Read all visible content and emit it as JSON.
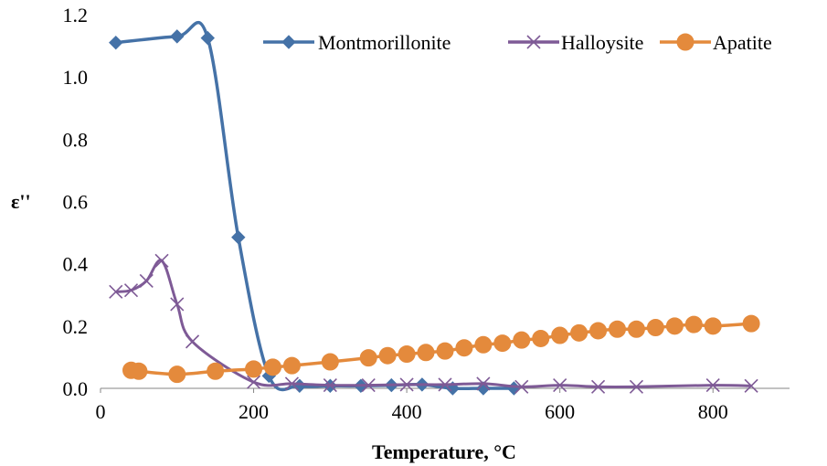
{
  "chart_data": {
    "type": "line",
    "title": "",
    "xlabel": "Temperature, °C",
    "ylabel": "ε''",
    "xlim": [
      0,
      900
    ],
    "ylim": [
      0,
      1.2
    ],
    "xticks": [
      0,
      200,
      400,
      600,
      800
    ],
    "xtick_labels": [
      "0",
      "200",
      "400",
      "600",
      "800"
    ],
    "yticks": [
      0,
      0.2,
      0.4,
      0.6,
      0.8,
      1.0,
      1.2
    ],
    "ytick_labels": [
      "0.0",
      "0.2",
      "0.4",
      "0.6",
      "0.8",
      "1.0",
      "1.2"
    ],
    "grid": false,
    "legend_position": "top-right",
    "series": [
      {
        "name": "Montmorillonite",
        "color": "#4572a7",
        "marker": "diamond",
        "x": [
          20,
          100,
          140,
          180,
          220,
          260,
          300,
          340,
          380,
          420,
          460,
          500,
          540
        ],
        "y": [
          1.11,
          1.13,
          1.125,
          0.485,
          0.04,
          0.008,
          0.008,
          0.008,
          0.01,
          0.012,
          0.0,
          0.0,
          0.0
        ]
      },
      {
        "name": "Halloysite",
        "color": "#7e5a96",
        "marker": "x",
        "x": [
          20,
          40,
          60,
          80,
          100,
          120,
          200,
          250,
          300,
          350,
          400,
          450,
          500,
          550,
          600,
          650,
          700,
          800,
          850
        ],
        "y": [
          0.31,
          0.315,
          0.345,
          0.41,
          0.27,
          0.15,
          0.02,
          0.015,
          0.01,
          0.01,
          0.012,
          0.012,
          0.015,
          0.005,
          0.01,
          0.005,
          0.005,
          0.01,
          0.008
        ]
      },
      {
        "name": "Apatite",
        "color": "#e48a3c",
        "marker": "circle",
        "x": [
          40,
          50,
          100,
          150,
          200,
          225,
          250,
          300,
          350,
          375,
          400,
          425,
          450,
          475,
          500,
          525,
          550,
          575,
          600,
          625,
          650,
          675,
          700,
          725,
          750,
          775,
          800,
          850
        ],
        "y": [
          0.058,
          0.055,
          0.045,
          0.055,
          0.062,
          0.068,
          0.073,
          0.085,
          0.098,
          0.105,
          0.11,
          0.115,
          0.12,
          0.13,
          0.14,
          0.145,
          0.155,
          0.16,
          0.17,
          0.178,
          0.185,
          0.19,
          0.19,
          0.195,
          0.2,
          0.205,
          0.2,
          0.208
        ]
      }
    ]
  }
}
